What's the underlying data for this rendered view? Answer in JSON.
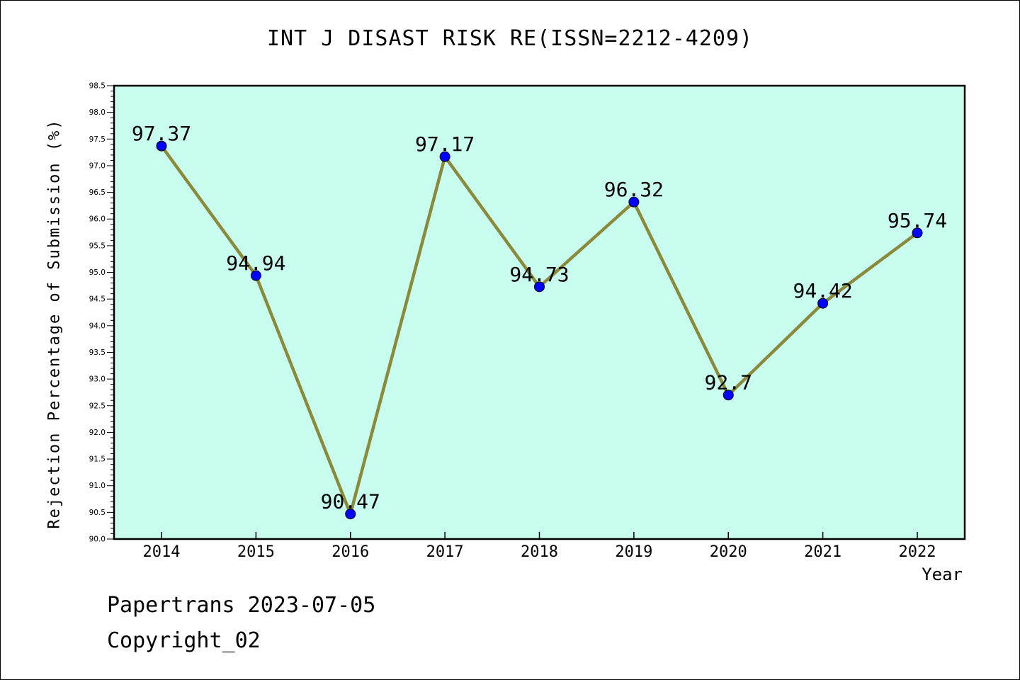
{
  "chart_data": {
    "type": "line",
    "title": "INT J DISAST RISK RE(ISSN=2212-4209)",
    "xlabel": "Year",
    "ylabel": "Rejection Percentage of Submission (%)",
    "categories": [
      "2014",
      "2015",
      "2016",
      "2017",
      "2018",
      "2019",
      "2020",
      "2021",
      "2022"
    ],
    "series": [
      {
        "values": [
          97.37,
          94.94,
          90.47,
          97.17,
          94.73,
          96.32,
          92.7,
          94.42,
          95.74
        ],
        "labels": [
          "97.37",
          "94.94",
          "90.47",
          "97.17",
          "94.73",
          "96.32",
          "92.7",
          "94.42",
          "95.74"
        ]
      }
    ],
    "ylim": [
      90.0,
      98.5
    ],
    "yticks": [
      "90.0",
      "90.5",
      "91.0",
      "91.5",
      "92.0",
      "92.5",
      "93.0",
      "93.5",
      "94.0",
      "94.5",
      "95.0",
      "95.5",
      "96.0",
      "96.5",
      "97.0",
      "97.5",
      "98.0",
      "98.5"
    ],
    "grid": false,
    "colors": {
      "plot_background": "#c8fcee",
      "line": "#8b8a3a",
      "marker": "#0000ff"
    }
  },
  "footer": {
    "date_line": "Papertrans 2023-07-05",
    "copyright_line": "Copyright_02"
  }
}
